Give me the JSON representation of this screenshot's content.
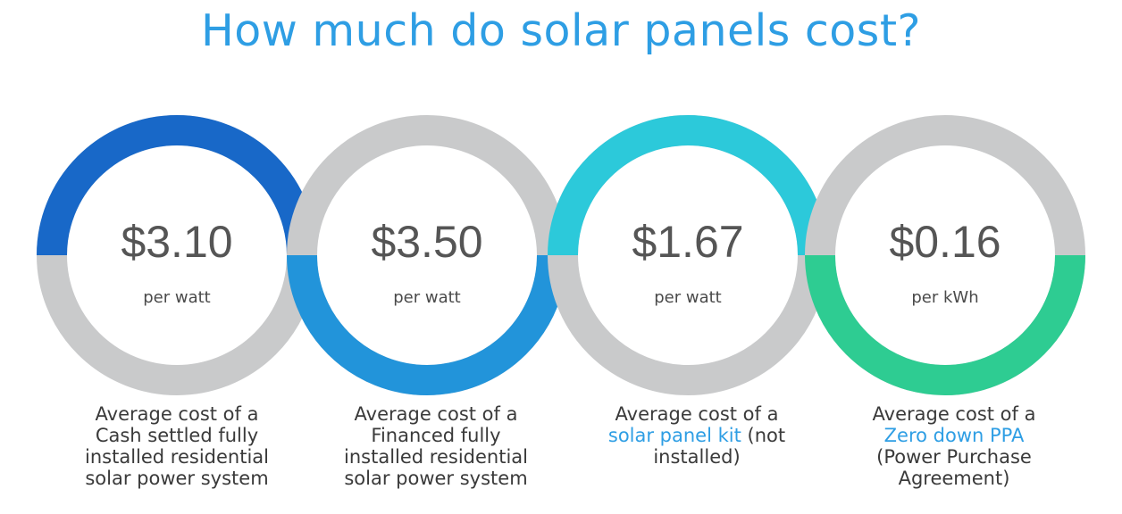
{
  "title": "How much do solar panels cost?",
  "colors": {
    "title": "#2e9ee4",
    "grey": "#c9cacb",
    "dark_blue": "#1868c8",
    "mid_blue": "#2294da",
    "cyan": "#2cc9da",
    "green": "#2ecc92"
  },
  "items": [
    {
      "price": "$3.10",
      "unit": "per watt",
      "lines": [
        "Average cost of a",
        "Cash settled fully",
        "installed residential",
        "solar power system"
      ]
    },
    {
      "price": "$3.50",
      "unit": "per watt",
      "lines": [
        "Average cost of a",
        "Financed fully",
        "installed residential",
        "solar power system"
      ]
    },
    {
      "price": "$1.67",
      "unit": "per watt",
      "line1": "Average cost of a",
      "link": "solar panel kit",
      "link_suffix": " (not",
      "line3": "installed)"
    },
    {
      "price": "$0.16",
      "unit": "per kWh",
      "line1": "Average cost of a",
      "link": "Zero down PPA",
      "line3": "(Power Purchase",
      "line4": "Agreement)"
    }
  ]
}
